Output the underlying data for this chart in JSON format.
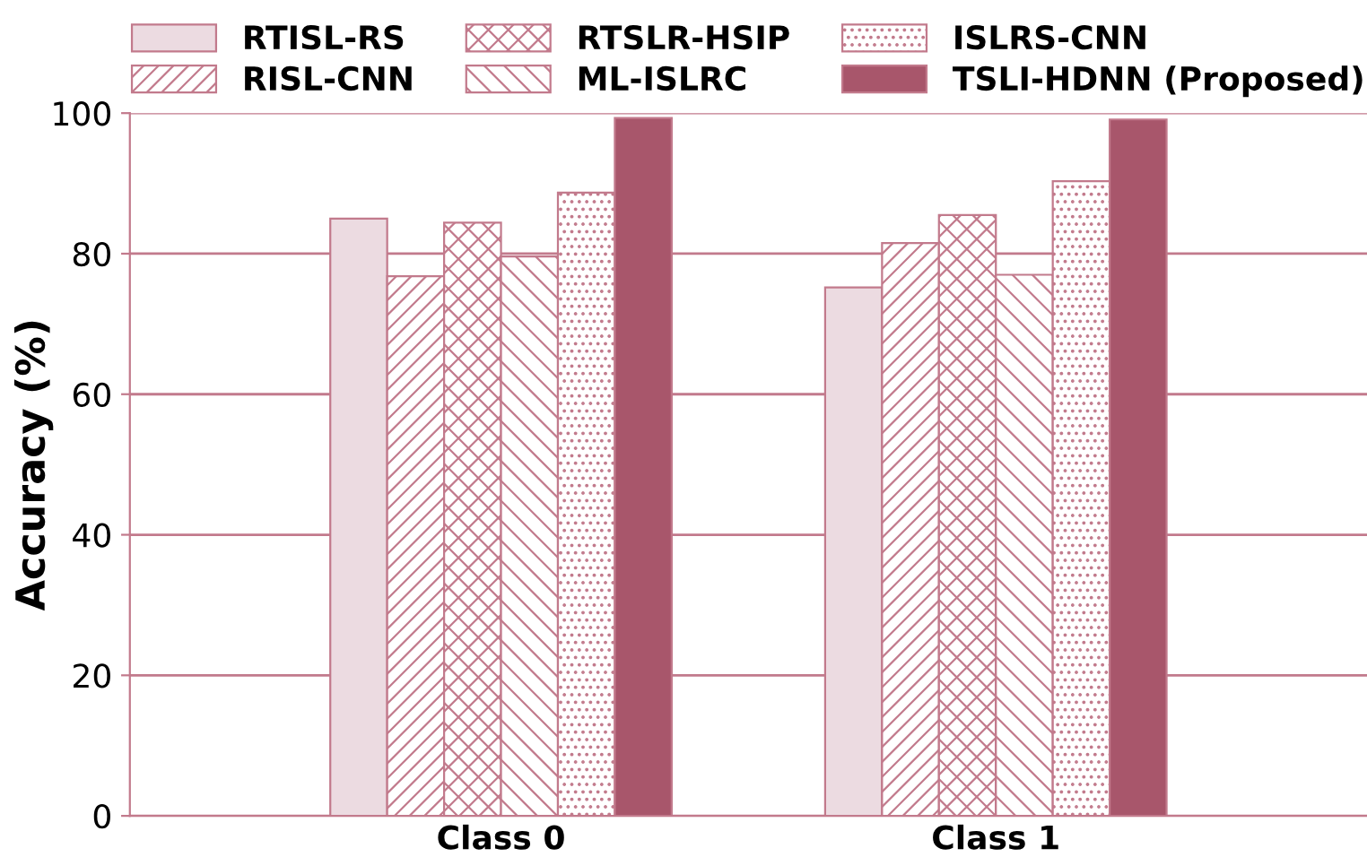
{
  "chart_data": {
    "type": "bar",
    "ylabel": "Accuracy (%)",
    "categories": [
      "Class 0",
      "Class 1"
    ],
    "series": [
      {
        "name": "RTISL-RS",
        "color": "#ecdbe1",
        "values": [
          85.0,
          75.2
        ]
      },
      {
        "name": "RISL-CNN",
        "color": "#c27a8c",
        "values": [
          76.8,
          81.5
        ]
      },
      {
        "name": "RTSLR-HSIP",
        "color": "#c27a8c",
        "values": [
          84.4,
          85.5
        ]
      },
      {
        "name": "ML-ISLRC",
        "color": "#c27a8c",
        "values": [
          79.6,
          77.0
        ]
      },
      {
        "name": "ISLRS-CNN",
        "color": "#c27a8c",
        "values": [
          88.7,
          90.3
        ]
      },
      {
        "name": "TSLI-HDNN (Proposed)",
        "color": "#a8566b",
        "values": [
          99.3,
          99.1
        ]
      }
    ],
    "ylim": [
      0,
      100
    ],
    "yticks": [
      0,
      20,
      40,
      60,
      80,
      100
    ],
    "grid": "y",
    "legend": "top"
  }
}
